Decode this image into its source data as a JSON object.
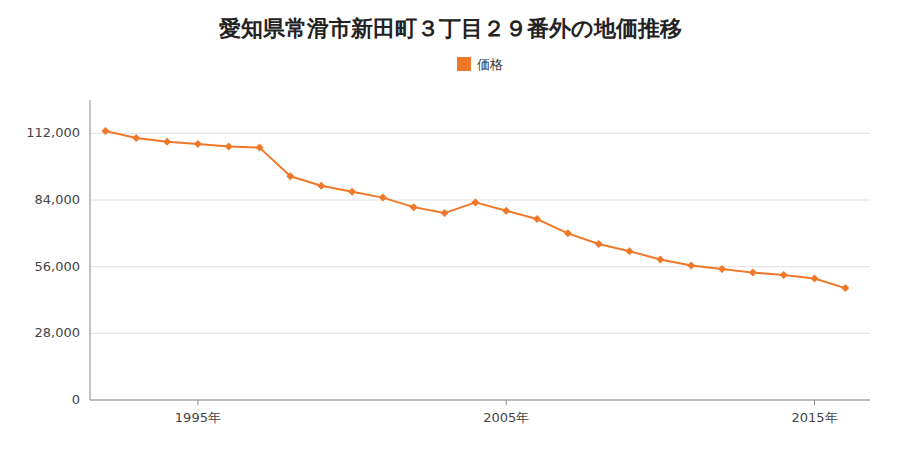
{
  "chart_data": {
    "type": "line",
    "title": "愛知県常滑市新田町３丁目２９番外の地価推移",
    "x": [
      1992,
      1993,
      1994,
      1995,
      1996,
      1997,
      1998,
      1999,
      2000,
      2001,
      2002,
      2003,
      2004,
      2005,
      2006,
      2007,
      2008,
      2009,
      2010,
      2011,
      2012,
      2013,
      2014,
      2015,
      2016
    ],
    "series": [
      {
        "name": "価格",
        "color": "#f07828",
        "marker": "diamond",
        "values": [
          113000,
          110000,
          108500,
          107500,
          106500,
          106000,
          94000,
          90000,
          87500,
          85000,
          81000,
          78500,
          83000,
          79500,
          76000,
          70000,
          65500,
          62500,
          59000,
          56500,
          55000,
          53500,
          52500,
          51000,
          47000
        ]
      }
    ],
    "xlim": [
      1991.5,
      2016.8
    ],
    "xticks": [
      {
        "value": 1995,
        "label": "1995年"
      },
      {
        "value": 2005,
        "label": "2005年"
      },
      {
        "value": 2015,
        "label": "2015年"
      }
    ],
    "ylim": [
      0,
      126000
    ],
    "yticks": [
      0,
      {
        "value": 28000,
        "label": "28,000"
      },
      {
        "value": 56000,
        "label": "56,000"
      },
      {
        "value": 84000,
        "label": "84,000"
      },
      {
        "value": 112000,
        "label": "112,000"
      }
    ],
    "grid": true,
    "legend": "top"
  }
}
